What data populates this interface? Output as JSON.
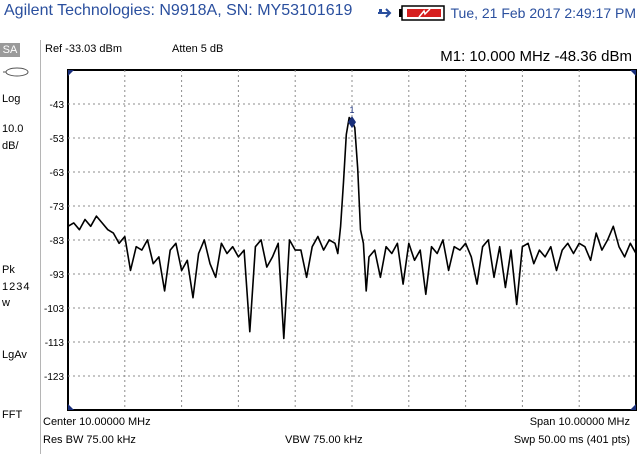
{
  "header": {
    "title": "Agilent Technologies: N9918A, SN: MY53101619",
    "datetime": "Tue, 21 Feb 2017 2:49:17 PM",
    "icons": [
      "usb-icon",
      "battery-charging-icon"
    ]
  },
  "left_panel": {
    "mode": "SA",
    "probe_icon": "probe-icon",
    "scale_type": "Log",
    "scale_value": "10.0",
    "scale_unit": "dB/",
    "detector": "Pk",
    "traces": "1234",
    "trace_mode": "w",
    "average_type": "LgAv",
    "sweep_mode": "FFT"
  },
  "measurement": {
    "ref_level": "Ref -33.03 dBm",
    "atten": "Atten 5 dB",
    "marker_readout": "M1:  10.000 MHz  -48.36 dBm",
    "marker_label": "1"
  },
  "footer": {
    "center": "Center 10.00000 MHz",
    "span": "Span 10.00000 MHz",
    "res_bw": "Res BW 75.00 kHz",
    "vbw": "VBW 75.00 kHz",
    "sweep": "Swp 50.00 ms (401 pts)"
  },
  "colors": {
    "title": "#2a4f9e",
    "trace": "#000000",
    "marker": "#1a2f7a",
    "grid": "#8c8c8c"
  },
  "chart_data": {
    "type": "line",
    "xlabel": "",
    "ylabel": "",
    "ylim": [
      -133.03,
      -33.03
    ],
    "yticks": [
      -43,
      -53,
      -63,
      -73,
      -83,
      -93,
      -103,
      -113,
      -123
    ],
    "xlim": [
      5.0,
      15.0
    ],
    "grid": true,
    "marker": {
      "x": 10.0,
      "y": -48.36
    },
    "series": [
      {
        "x": [
          5.0,
          5.1,
          5.2,
          5.3,
          5.4,
          5.5,
          5.6,
          5.7,
          5.8,
          5.9,
          6.0,
          6.1,
          6.2,
          6.3,
          6.4,
          6.5,
          6.6,
          6.7,
          6.8,
          6.9,
          7.0,
          7.1,
          7.2,
          7.3,
          7.4,
          7.5,
          7.6,
          7.7,
          7.8,
          7.9,
          8.0,
          8.1,
          8.2,
          8.3,
          8.4,
          8.5,
          8.6,
          8.7,
          8.8,
          8.9,
          9.0,
          9.1,
          9.2,
          9.3,
          9.4,
          9.5,
          9.6,
          9.7,
          9.75,
          9.8,
          9.85,
          9.9,
          9.95,
          10.0,
          10.05,
          10.1,
          10.15,
          10.2,
          10.25,
          10.3,
          10.4,
          10.5,
          10.6,
          10.7,
          10.8,
          10.9,
          11.0,
          11.1,
          11.2,
          11.3,
          11.4,
          11.5,
          11.6,
          11.7,
          11.8,
          11.9,
          12.0,
          12.1,
          12.2,
          12.3,
          12.4,
          12.5,
          12.6,
          12.7,
          12.8,
          12.9,
          13.0,
          13.1,
          13.2,
          13.3,
          13.4,
          13.5,
          13.6,
          13.7,
          13.8,
          13.9,
          14.0,
          14.1,
          14.2,
          14.3,
          14.4,
          14.5,
          14.6,
          14.7,
          14.8,
          14.9,
          15.0
        ],
        "values": [
          -79,
          -78,
          -80,
          -77,
          -79,
          -76,
          -78,
          -80,
          -81,
          -84,
          -82,
          -92,
          -85,
          -86,
          -83,
          -90,
          -88,
          -98,
          -86,
          -84,
          -92,
          -89,
          -100,
          -87,
          -83,
          -90,
          -94,
          -84,
          -87,
          -85,
          -88,
          -86,
          -110,
          -85,
          -83,
          -91,
          -88,
          -84,
          -112,
          -83,
          -86,
          -86,
          -94,
          -85,
          -82,
          -86,
          -83,
          -84,
          -87,
          -79,
          -66,
          -52,
          -47,
          -48,
          -50,
          -62,
          -80,
          -84,
          -98,
          -88,
          -86,
          -94,
          -85,
          -87,
          -84,
          -96,
          -84,
          -89,
          -86,
          -99,
          -85,
          -87,
          -83,
          -92,
          -85,
          -86,
          -84,
          -88,
          -96,
          -85,
          -83,
          -94,
          -85,
          -97,
          -86,
          -102,
          -85,
          -84,
          -90,
          -86,
          -88,
          -85,
          -92,
          -86,
          -84,
          -87,
          -84,
          -85,
          -89,
          -81,
          -86,
          -83,
          -79,
          -85,
          -88,
          -84,
          -87
        ]
      }
    ]
  }
}
